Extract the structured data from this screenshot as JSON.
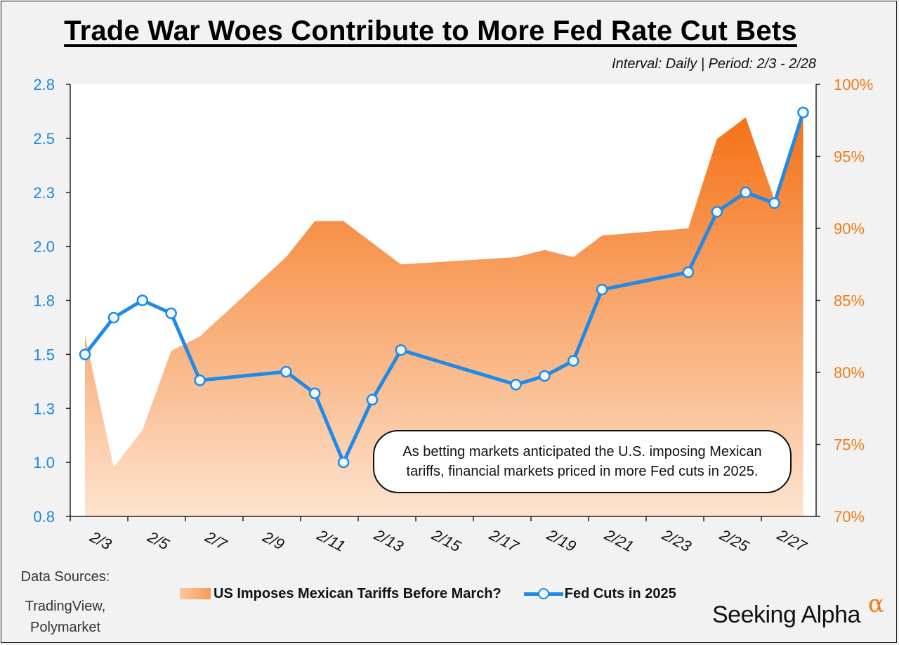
{
  "header": {
    "title": "Trade War Woes Contribute to More Fed Rate Cut Bets",
    "subtitle": "Interval: Daily | Period: 2/3 - 2/28"
  },
  "colors": {
    "fed_line": "#1f8ae8",
    "tariff_area_top": "#f47216",
    "tariff_area_bottom": "#fde3cf",
    "left_axis": "#1a86e6",
    "right_axis": "#f07a1a"
  },
  "annotation": {
    "text": "As betting markets anticipated the U.S. imposing Mexican tariffs, financial markets priced in more Fed cuts in 2025."
  },
  "sources": {
    "label": "Data Sources:",
    "line1": "TradingView,",
    "line2": "Polymarket"
  },
  "legend": {
    "area_label": "US Imposes Mexican Tariffs Before March?",
    "line_label": "Fed Cuts in 2025"
  },
  "branding": {
    "logo_text": "Seeking Alpha",
    "logo_symbol": "α"
  },
  "chart_data": {
    "type": "line",
    "title": "Trade War Woes Contribute to More Fed Rate Cut Bets",
    "x_tick_labels": [
      "2/3",
      "2/5",
      "2/7",
      "2/9",
      "2/11",
      "2/13",
      "2/15",
      "2/17",
      "2/19",
      "2/21",
      "2/23",
      "2/25",
      "2/27"
    ],
    "left_axis": {
      "ticks": [
        "0.8",
        "1.0",
        "1.3",
        "1.5",
        "1.8",
        "2.0",
        "2.3",
        "2.5",
        "2.8"
      ],
      "ylim": [
        0.8,
        2.8
      ]
    },
    "right_axis": {
      "ticks": [
        "70%",
        "75%",
        "80%",
        "85%",
        "90%",
        "95%",
        "100%"
      ],
      "ylim": [
        70,
        100
      ]
    },
    "series": [
      {
        "name": "US Imposes Mexican Tariffs Before March?",
        "kind": "area",
        "axis": "right",
        "points": [
          {
            "x": 0,
            "y": 82.6
          },
          {
            "x": 1,
            "y": 73.4
          },
          {
            "x": 2,
            "y": 76.0
          },
          {
            "x": 3,
            "y": 81.5
          },
          {
            "x": 4,
            "y": 82.5
          },
          {
            "x": 7,
            "y": 88.0
          },
          {
            "x": 8,
            "y": 90.5
          },
          {
            "x": 9,
            "y": 90.5
          },
          {
            "x": 11,
            "y": 87.5
          },
          {
            "x": 15,
            "y": 88.0
          },
          {
            "x": 16,
            "y": 88.5
          },
          {
            "x": 17,
            "y": 88.0
          },
          {
            "x": 18,
            "y": 89.5
          },
          {
            "x": 21,
            "y": 90.0
          },
          {
            "x": 22,
            "y": 96.2
          },
          {
            "x": 23,
            "y": 97.7
          },
          {
            "x": 24,
            "y": 92.0
          },
          {
            "x": 25,
            "y": 97.8
          }
        ]
      },
      {
        "name": "Fed Cuts in 2025",
        "kind": "line",
        "axis": "left",
        "points": [
          {
            "x": 0,
            "y": 1.55
          },
          {
            "x": 1,
            "y": 1.72
          },
          {
            "x": 2,
            "y": 1.8
          },
          {
            "x": 3,
            "y": 1.74
          },
          {
            "x": 4,
            "y": 1.43
          },
          {
            "x": 7,
            "y": 1.47
          },
          {
            "x": 8,
            "y": 1.37
          },
          {
            "x": 9,
            "y": 1.05
          },
          {
            "x": 10,
            "y": 1.34
          },
          {
            "x": 11,
            "y": 1.57
          },
          {
            "x": 15,
            "y": 1.41
          },
          {
            "x": 16,
            "y": 1.45
          },
          {
            "x": 17,
            "y": 1.52
          },
          {
            "x": 18,
            "y": 1.85
          },
          {
            "x": 21,
            "y": 1.93
          },
          {
            "x": 22,
            "y": 2.21
          },
          {
            "x": 23,
            "y": 2.3
          },
          {
            "x": 24,
            "y": 2.25
          },
          {
            "x": 25,
            "y": 2.67
          }
        ]
      }
    ]
  }
}
